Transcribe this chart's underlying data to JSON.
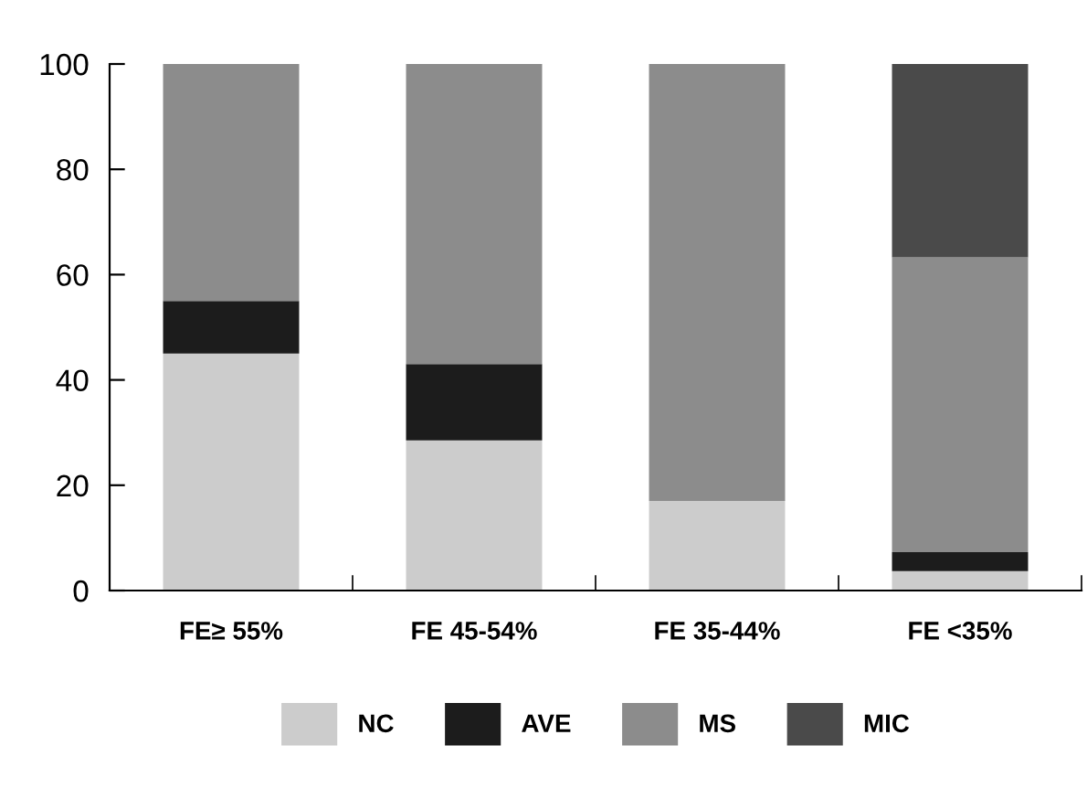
{
  "chart_data": {
    "type": "bar",
    "stacked": true,
    "categories": [
      "FE≥ 55%",
      "FE 45-54%",
      "FE 35-44%",
      "FE <35%"
    ],
    "series": [
      {
        "name": "NC",
        "color": "#cccccc",
        "values": [
          45,
          28.5,
          17,
          3.7
        ]
      },
      {
        "name": "AVE",
        "color": "#1c1c1c",
        "values": [
          10,
          14.5,
          0,
          3.6
        ]
      },
      {
        "name": "MS",
        "color": "#8c8c8c",
        "values": [
          45,
          57,
          83,
          56
        ]
      },
      {
        "name": "MIC",
        "color": "#4a4a4a",
        "values": [
          0,
          0,
          0,
          36.7
        ]
      }
    ],
    "ylim": [
      0,
      100
    ],
    "yticks": [
      0,
      20,
      40,
      60,
      80,
      100
    ],
    "grid": false,
    "legend": "bottom"
  }
}
